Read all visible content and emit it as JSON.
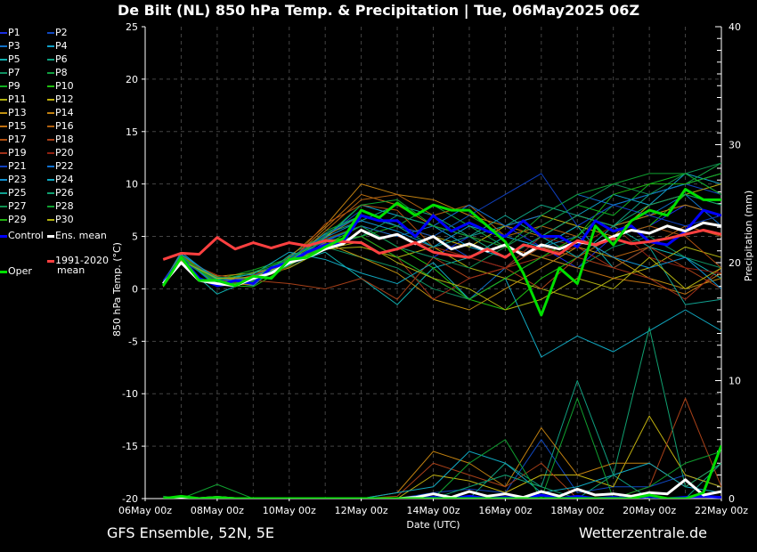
{
  "chart_data": {
    "type": "line",
    "title": "De Bilt  (NL)  850 hPa Temp. & Precipitation | Tue, 06May2025 06Z",
    "xlabel": "Date (UTC)",
    "ylabel": "850 hPa Temp. (°C)",
    "y2label": "Precipitation (mm)",
    "xlim_days": [
      "06May 00z",
      "22May 00z"
    ],
    "ylim": [
      -20,
      25
    ],
    "y2lim": [
      0,
      40
    ],
    "grid": true,
    "legend_position": "left-outside",
    "x_tick_labels": [
      "06May 00z",
      "08May 00z",
      "10May 00z",
      "12May 00z",
      "14May 00z",
      "16May 00z",
      "18May 00z",
      "20May 00z",
      "22May 00z"
    ],
    "y_tick_labels": [
      "-20",
      "-15",
      "-10",
      "-5",
      "0",
      "5",
      "10",
      "15",
      "20",
      "25"
    ],
    "y2_tick_labels": [
      "0",
      "10",
      "20",
      "30",
      "40"
    ],
    "main_series_times_days_after_06May00z": [
      0.5,
      1,
      1.5,
      2,
      2.5,
      3,
      3.5,
      4,
      4.5,
      5,
      5.5,
      6,
      6.5,
      7,
      7.5,
      8,
      8.5,
      9,
      9.5,
      10,
      10.5,
      11,
      11.5,
      12,
      12.5,
      13,
      13.5,
      14,
      14.5,
      15,
      15.5,
      16
    ],
    "main_series": [
      {
        "name": "Control",
        "color": "#0000ff",
        "width": 3,
        "temp": [
          0.5,
          3.0,
          1.0,
          0.3,
          0.8,
          0.5,
          2.0,
          2.5,
          3.5,
          4.2,
          4.5,
          7.0,
          6.5,
          6.5,
          5.0,
          7.0,
          5.5,
          6.3,
          5.5,
          5.0,
          6.5,
          5.0,
          5.0,
          4.0,
          6.5,
          5.5,
          6.0,
          4.5,
          4.2,
          5.5,
          7.5,
          7.0
        ],
        "precip": [
          0,
          0,
          0,
          0,
          0,
          0,
          0,
          0,
          0,
          0,
          0,
          0,
          0,
          0,
          0,
          0.1,
          0,
          0.2,
          0,
          0.1,
          0,
          0.3,
          0,
          0.2,
          0,
          0.1,
          0,
          0.2,
          0,
          0.1,
          0.2,
          0.1
        ]
      },
      {
        "name": "Ens. mean",
        "color": "#ffffff",
        "width": 3,
        "temp": [
          0.5,
          2.5,
          0.8,
          0.5,
          0.3,
          1.0,
          1.5,
          2.5,
          3.0,
          3.8,
          4.3,
          5.6,
          4.8,
          5.2,
          4.3,
          5.0,
          3.8,
          4.3,
          3.6,
          4.2,
          3.2,
          4.2,
          3.8,
          4.5,
          4.2,
          5.0,
          5.6,
          5.3,
          6.0,
          5.5,
          6.3,
          6.0
        ],
        "precip": [
          0,
          0.1,
          0,
          0.1,
          0,
          0,
          0,
          0,
          0,
          0,
          0,
          0,
          0,
          0,
          0.1,
          0.4,
          0.1,
          0.6,
          0.2,
          0.4,
          0.1,
          0.6,
          0.2,
          0.8,
          0.3,
          0.4,
          0.2,
          0.5,
          0.4,
          1.6,
          0.3,
          0.6
        ]
      },
      {
        "name": "1991-2020 mean",
        "color": "#ff4040",
        "width": 3,
        "temp": [
          2.8,
          3.4,
          3.3,
          4.9,
          3.8,
          4.4,
          3.9,
          4.4,
          4.1,
          4.6,
          4.5,
          4.4,
          3.4,
          3.8,
          4.4,
          3.5,
          3.2,
          3.0,
          3.8,
          3.0,
          4.2,
          3.8,
          3.3,
          4.6,
          4.2,
          4.8,
          4.3,
          4.5,
          4.8,
          5.2,
          5.6,
          5.2
        ]
      },
      {
        "name": "Oper",
        "color": "#00e000",
        "width": 3,
        "temp": [
          0.3,
          3.0,
          0.8,
          0.8,
          0.3,
          1.2,
          1.0,
          2.8,
          3.0,
          4.0,
          4.8,
          7.5,
          6.8,
          8.2,
          7.0,
          8.0,
          7.5,
          7.5,
          6.0,
          4.5,
          1.5,
          -2.5,
          2.0,
          0.5,
          6.0,
          4.2,
          6.5,
          7.5,
          7.0,
          9.5,
          8.5,
          8.5
        ],
        "precip": [
          0,
          0.2,
          0,
          0.1,
          0,
          0,
          0,
          0,
          0,
          0,
          0,
          0,
          0,
          0,
          0,
          0,
          0,
          0,
          0,
          0,
          0,
          0,
          0,
          0,
          0,
          0,
          0,
          0.3,
          0,
          0,
          0.5,
          4.5
        ]
      }
    ],
    "member_times_days_after_06May00z": [
      0.5,
      1,
      2,
      3,
      4,
      5,
      6,
      7,
      8,
      9,
      10,
      11,
      12,
      13,
      14,
      15,
      16
    ],
    "members": [
      {
        "name": "P1",
        "color": "#1a2ee0",
        "temp": [
          0.5,
          3,
          0.2,
          0.8,
          2.2,
          4.5,
          6,
          4,
          3,
          5,
          6,
          4,
          2,
          5,
          6,
          8,
          7
        ]
      },
      {
        "name": "P2",
        "color": "#1048c0",
        "temp": [
          0.8,
          3.2,
          1,
          0.5,
          2.8,
          5,
          7.5,
          6,
          5,
          3,
          2,
          4,
          6,
          8,
          9,
          10,
          9
        ],
        "precip": [
          0,
          0,
          0,
          0,
          0,
          0,
          0,
          0,
          0.5,
          0.8,
          0.5,
          5,
          0.5,
          1,
          1,
          2,
          1
        ]
      },
      {
        "name": "P3",
        "color": "#1070c8",
        "temp": [
          0.2,
          2.8,
          0.5,
          1.2,
          2,
          4,
          5,
          3,
          1,
          -1,
          2,
          5,
          3,
          6,
          7,
          9,
          6
        ]
      },
      {
        "name": "P4",
        "color": "#10a0c8",
        "temp": [
          0.6,
          3.5,
          0.8,
          0.3,
          3,
          4.8,
          8,
          7,
          6,
          4,
          3,
          5,
          7,
          9,
          8,
          11,
          10
        ]
      },
      {
        "name": "P5",
        "color": "#10b0b0",
        "temp": [
          0.4,
          2.6,
          -0.5,
          1,
          2.4,
          3.5,
          1,
          -1.5,
          2,
          3,
          5,
          4,
          6,
          2,
          4,
          3,
          1
        ]
      },
      {
        "name": "P6",
        "color": "#10a080",
        "temp": [
          0.3,
          3,
          0.3,
          0.5,
          3.2,
          5.2,
          6.5,
          8,
          7,
          5,
          6,
          8,
          7,
          6,
          9,
          10,
          11
        ],
        "precip": [
          0,
          0,
          0,
          0,
          0,
          0,
          0,
          0,
          0,
          0,
          3,
          1,
          10,
          2,
          0,
          0,
          3
        ]
      },
      {
        "name": "P7",
        "color": "#109060",
        "temp": [
          0.2,
          2.7,
          0.6,
          1.5,
          2.6,
          4,
          3,
          2,
          0,
          -1,
          1,
          3,
          2,
          4,
          5,
          3,
          2
        ]
      },
      {
        "name": "P8",
        "color": "#10a040",
        "temp": [
          0.5,
          3.1,
          1.1,
          0.8,
          2.5,
          5.5,
          7,
          6,
          8,
          6,
          4,
          3,
          5,
          8,
          9,
          10,
          12
        ]
      },
      {
        "name": "P9",
        "color": "#10b020",
        "temp": [
          0.6,
          2.9,
          0.9,
          1.8,
          2.9,
          4.6,
          5,
          6,
          5,
          7,
          5,
          6,
          8,
          7,
          10,
          11,
          9
        ]
      },
      {
        "name": "P10",
        "color": "#20c010",
        "temp": [
          0.3,
          3.2,
          0.4,
          0.2,
          2.2,
          4.2,
          6,
          4,
          2,
          -1,
          -2,
          1,
          3,
          5,
          6,
          9,
          8
        ]
      },
      {
        "name": "P11",
        "color": "#b0b010",
        "temp": [
          0.4,
          2.8,
          0.8,
          1,
          2,
          3.8,
          4,
          3,
          4,
          2,
          1,
          0,
          -1,
          1,
          2,
          4,
          3
        ]
      },
      {
        "name": "P12",
        "color": "#c0b010",
        "temp": [
          0.5,
          3,
          0.7,
          0.9,
          2.7,
          5,
          7,
          6,
          5,
          4,
          6,
          7,
          6,
          5,
          8,
          9,
          10
        ],
        "precip": [
          0,
          0,
          0,
          0,
          0,
          0,
          0,
          0,
          2,
          1.5,
          0.5,
          2,
          2,
          1,
          7,
          2,
          1
        ]
      },
      {
        "name": "P13",
        "color": "#c09010",
        "temp": [
          0.2,
          2.6,
          1.2,
          1.5,
          2.3,
          4.4,
          3,
          1.5,
          -1,
          -2,
          0,
          2,
          4,
          3,
          1,
          0,
          1
        ]
      },
      {
        "name": "P14",
        "color": "#c08010",
        "temp": [
          0.6,
          3.3,
          0.5,
          0.4,
          3,
          6,
          10,
          9,
          8.5,
          7,
          6,
          5,
          7,
          6,
          7,
          8,
          7
        ],
        "precip": [
          0,
          0,
          0,
          0,
          0,
          0,
          0,
          0.5,
          4,
          3,
          1,
          6,
          2,
          3,
          3,
          1,
          3
        ]
      },
      {
        "name": "P15",
        "color": "#c07010",
        "temp": [
          0.4,
          3,
          0.9,
          1.1,
          2.6,
          5.8,
          9,
          8,
          6,
          5,
          4,
          3,
          2,
          1,
          0.5,
          -0.5,
          1.5
        ]
      },
      {
        "name": "P16",
        "color": "#b06010",
        "temp": [
          0.5,
          2.9,
          1,
          0.6,
          2.4,
          5.5,
          8.5,
          9,
          7,
          8,
          5,
          6,
          5,
          3,
          4,
          6,
          5
        ]
      },
      {
        "name": "P17",
        "color": "#b05010",
        "temp": [
          0.3,
          3.1,
          0.4,
          1.3,
          2.5,
          6.2,
          8,
          7.5,
          4,
          3,
          2,
          4,
          3,
          5,
          6,
          5,
          2
        ]
      },
      {
        "name": "P18",
        "color": "#a84018",
        "temp": [
          0.6,
          2.8,
          1.3,
          0.8,
          0.5,
          0,
          1,
          -1,
          3,
          1,
          2,
          0,
          3,
          2,
          4,
          2,
          0
        ],
        "precip": [
          0,
          0,
          0,
          0,
          0,
          0,
          0,
          0.2,
          3,
          2,
          1,
          3,
          0,
          0,
          1,
          8.5,
          1
        ]
      },
      {
        "name": "P19",
        "color": "#a03018",
        "temp": [
          0.4,
          3,
          0.7,
          1,
          2.8,
          4.2,
          5,
          3,
          -1,
          1,
          2,
          3,
          4,
          2,
          1,
          -1,
          2
        ]
      },
      {
        "name": "P20",
        "color": "#902010",
        "temp": [
          0.5,
          3.2,
          0.6,
          0.7,
          2.1,
          4.8,
          6,
          5,
          4,
          3,
          2,
          5,
          4,
          6,
          3,
          2,
          1.5
        ]
      },
      {
        "name": "P21",
        "color": "#1040c0",
        "temp": [
          0.3,
          2.7,
          0.8,
          0.9,
          2.9,
          5.1,
          7,
          6,
          5,
          7,
          9,
          11,
          6,
          8,
          7,
          6,
          7
        ]
      },
      {
        "name": "P22",
        "color": "#1070d0",
        "temp": [
          0.6,
          3,
          0.5,
          1.2,
          2.7,
          4.6,
          6,
          5,
          6,
          8,
          6,
          7,
          9,
          8,
          9,
          10,
          11
        ]
      },
      {
        "name": "P23",
        "color": "#1090d0",
        "temp": [
          0.4,
          3.3,
          1,
          0.6,
          2.3,
          4.9,
          6.5,
          5.5,
          4,
          6,
          5,
          4,
          5,
          3,
          2,
          3,
          0
        ]
      },
      {
        "name": "P24",
        "color": "#10a8c0",
        "temp": [
          0.5,
          2.9,
          0.9,
          1.4,
          3.5,
          2.8,
          1.5,
          0.5,
          2.5,
          -1,
          1,
          -6.5,
          -4.5,
          -6,
          -4,
          -2,
          -4
        ],
        "precip": [
          0,
          0,
          0,
          0,
          0,
          0,
          0,
          0.5,
          1,
          4,
          3,
          0.5,
          1,
          2,
          3,
          1,
          0.5
        ]
      },
      {
        "name": "P25",
        "color": "#10a090",
        "temp": [
          0.3,
          3.1,
          0.3,
          0.8,
          2.6,
          5.3,
          7,
          6,
          4,
          5,
          7,
          5,
          3,
          6,
          4,
          -1.5,
          -1
        ]
      },
      {
        "name": "P26",
        "color": "#10a070",
        "temp": [
          0.6,
          2.8,
          1.1,
          1,
          3.1,
          4.5,
          5,
          7,
          6,
          5,
          3,
          5,
          7,
          6,
          8,
          9,
          8
        ],
        "precip": [
          0,
          0,
          0,
          0,
          0,
          0,
          0,
          0,
          0,
          1,
          2,
          1,
          0,
          2,
          14.5,
          1,
          3
        ]
      },
      {
        "name": "P27",
        "color": "#109050",
        "temp": [
          0.4,
          3,
          0.6,
          0.5,
          2.4,
          4.7,
          6,
          4,
          3,
          2,
          4,
          6,
          8,
          10,
          9,
          11,
          12
        ]
      },
      {
        "name": "P28",
        "color": "#10a030",
        "temp": [
          0.5,
          2.9,
          0.8,
          1.6,
          2.8,
          5,
          8,
          8.5,
          6,
          5,
          4,
          7,
          9,
          10,
          11,
          11,
          9
        ],
        "precip": [
          0.2,
          0,
          1.2,
          0,
          0,
          0,
          0,
          0,
          0,
          3,
          5,
          0,
          8.5,
          0,
          1,
          3,
          4
        ]
      },
      {
        "name": "P29",
        "color": "#20b010",
        "temp": [
          0.3,
          3.2,
          0.4,
          0.7,
          2.2,
          4.3,
          5,
          3,
          1,
          -1,
          1,
          3,
          5,
          9,
          10,
          10,
          11
        ]
      },
      {
        "name": "P30",
        "color": "#b0b010",
        "temp": [
          0.6,
          2.7,
          1,
          1.1,
          2.5,
          3.8,
          4.5,
          2.5,
          1,
          0,
          -2,
          -1,
          1,
          0,
          3,
          0,
          2
        ]
      }
    ]
  },
  "legend": {
    "control": "Control",
    "ens_mean": "Ens. mean",
    "clim_line1": "1991-2020",
    "clim_line2": "mean",
    "oper": "Oper"
  },
  "footer": {
    "model": "GFS Ensemble, 52N, 5E",
    "source": "Wetterzentrale.de"
  }
}
